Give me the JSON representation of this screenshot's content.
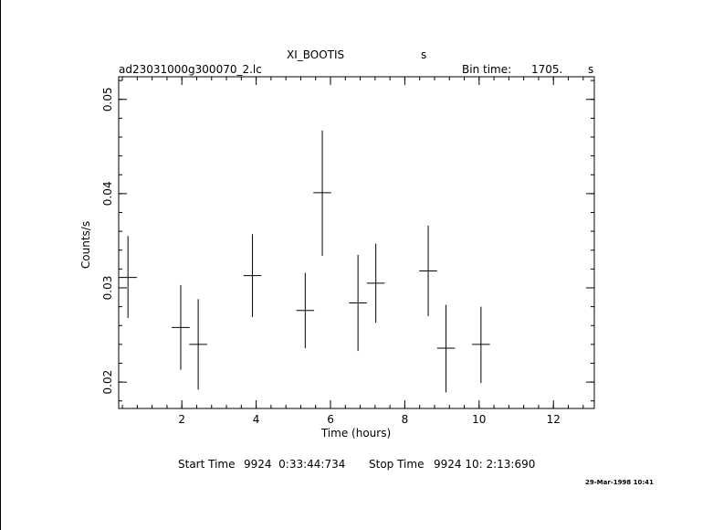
{
  "header": {
    "object_name": "XI_BOOTIS",
    "object_unit": "s",
    "file_name": "ad23031000g300070_2.lc",
    "bin_time_label": "Bin time:",
    "bin_time_value": "1705.",
    "bin_time_unit": "s"
  },
  "footer": {
    "start_label": "Start Time",
    "start_value": "9924  0:33:44:734",
    "stop_label": "Stop Time",
    "stop_value": "9924 10: 2:13:690",
    "timestamp": "29-Mar-1998 10:41"
  },
  "chart_data": {
    "type": "scatter",
    "xlabel": "Time (hours)",
    "ylabel": "Counts/s",
    "xlim": [
      0.3,
      13.1
    ],
    "ylim": [
      0.0172,
      0.0524
    ],
    "xticks": [
      2,
      4,
      6,
      8,
      10,
      12
    ],
    "yticks": [
      0.02,
      0.03,
      0.04,
      0.05
    ],
    "ytick_labels": [
      "0.02",
      "0.03",
      "0.04",
      "0.05"
    ],
    "x_minor_step": 0.4,
    "y_minor_step": 0.002,
    "grid": false,
    "points": [
      {
        "x": 0.55,
        "y": 0.0311,
        "xerr": 0.24,
        "yerr_lo": 0.0043,
        "yerr_hi": 0.0044
      },
      {
        "x": 1.97,
        "y": 0.0258,
        "xerr": 0.24,
        "yerr_lo": 0.0045,
        "yerr_hi": 0.0045
      },
      {
        "x": 2.44,
        "y": 0.024,
        "xerr": 0.24,
        "yerr_lo": 0.0048,
        "yerr_hi": 0.0048
      },
      {
        "x": 3.9,
        "y": 0.0313,
        "xerr": 0.24,
        "yerr_lo": 0.0044,
        "yerr_hi": 0.0044
      },
      {
        "x": 5.32,
        "y": 0.0276,
        "xerr": 0.24,
        "yerr_lo": 0.004,
        "yerr_hi": 0.004
      },
      {
        "x": 5.78,
        "y": 0.0401,
        "xerr": 0.24,
        "yerr_lo": 0.0067,
        "yerr_hi": 0.0066
      },
      {
        "x": 6.74,
        "y": 0.0284,
        "xerr": 0.24,
        "yerr_lo": 0.0051,
        "yerr_hi": 0.0051
      },
      {
        "x": 7.22,
        "y": 0.0305,
        "xerr": 0.24,
        "yerr_lo": 0.0042,
        "yerr_hi": 0.0042
      },
      {
        "x": 8.63,
        "y": 0.0318,
        "xerr": 0.24,
        "yerr_lo": 0.0048,
        "yerr_hi": 0.0048
      },
      {
        "x": 9.11,
        "y": 0.0236,
        "xerr": 0.24,
        "yerr_lo": 0.0047,
        "yerr_hi": 0.0046
      },
      {
        "x": 10.05,
        "y": 0.024,
        "xerr": 0.24,
        "yerr_lo": 0.0041,
        "yerr_hi": 0.004
      }
    ]
  }
}
